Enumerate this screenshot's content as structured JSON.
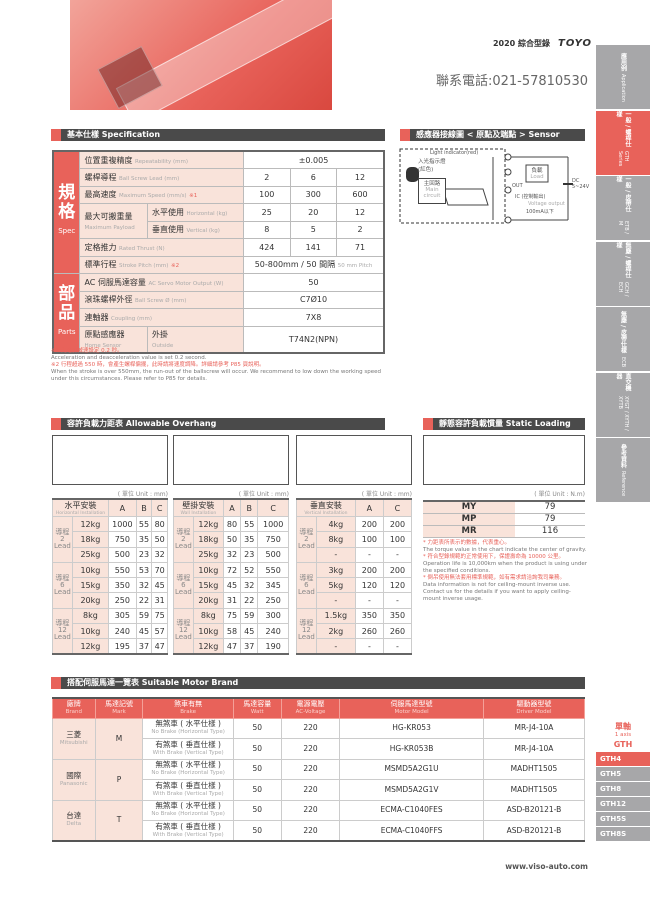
{
  "header": {
    "catalog": "2020 綜合型錄",
    "brand": "TOYO",
    "phone": "聯系電話:021-57810530"
  },
  "sidebar": [
    {
      "zh": "應用例",
      "en": "Application"
    },
    {
      "zh": "一般 / 螺桿仕樣",
      "en": "GTH Series",
      "active": true
    },
    {
      "zh": "一般 / 皮帶仕樣",
      "en": "ETB / M"
    },
    {
      "zh": "無塵 / 螺桿仕樣",
      "en": "GCH / ECH"
    },
    {
      "zh": "無塵 / 皮帶仕樣",
      "en": "ECB"
    },
    {
      "zh": "直交機器",
      "en": "XYGT / XYTH / XYTB"
    },
    {
      "zh": "參考資料",
      "en": "Reference"
    }
  ],
  "axis_nav": {
    "zh": "單軸",
    "en": "1 axis",
    "model": "GTH",
    "items": [
      "GTH4",
      "GTH5",
      "GTH8",
      "GTH12",
      "GTH5S",
      "GTH8S"
    ],
    "active": "GTH4"
  },
  "spec": {
    "title": "基本仕樣 Specification",
    "group_spec": {
      "zh": "規格",
      "en": "Spec"
    },
    "group_parts": {
      "zh": "部品",
      "en": "Parts"
    },
    "rows": {
      "repeat": {
        "zh": "位置重複精度",
        "en": "Repeatability (mm)",
        "value": "±0.005"
      },
      "lead": {
        "zh": "螺桿導程",
        "en": "Ball Screw Lead (mm)",
        "values": [
          "2",
          "6",
          "12"
        ]
      },
      "speed": {
        "zh": "最高速度",
        "en": "Maximum Speed (mm/s)",
        "mark": "※1",
        "values": [
          "100",
          "300",
          "600"
        ]
      },
      "payload": {
        "zh": "最大可搬重量",
        "en": "Maximum Payload",
        "h_zh": "水平使用",
        "h_en": "Horizontal (kg)",
        "h": [
          "25",
          "20",
          "12"
        ],
        "v_zh": "垂直使用",
        "v_en": "Vertical (kg)",
        "v": [
          "8",
          "5",
          "2"
        ]
      },
      "thrust": {
        "zh": "定格推力",
        "en": "Rated Thrust (N)",
        "values": [
          "424",
          "141",
          "71"
        ]
      },
      "stroke": {
        "zh": "標準行程",
        "en": "Stroke Pitch (mm)",
        "mark": "※2",
        "value": "50-800mm / 50 間隔",
        "value_en": "50 mm Pitch"
      },
      "motor": {
        "zh": "AC 伺服馬達容量",
        "en": "AC Servo Motor Output (W)",
        "value": "50"
      },
      "screw": {
        "zh": "滾珠螺桿外徑",
        "en": "Ball Screw Ø (mm)",
        "value": "C7Ø10"
      },
      "coupling": {
        "zh": "連軸器",
        "en": "Coupling (mm)",
        "value": "7X8"
      },
      "sensor": {
        "zh": "原點感應器",
        "en": "Home Sensor",
        "sub_zh": "外掛",
        "sub_en": "Outside",
        "value": "T74N2(NPN)"
      }
    },
    "notes": [
      "※1 馬達加減速設定 0.2 秒。",
      "Acceleration and deacceleration value is set 0.2 second.",
      "※2 行程超過 550 時，會產生螺桿偏擺，此時請將速度調降。詳細請參考 P85 頁說明。",
      "When the stroke is over 550mm, the run-out of the ballscrew will occur. We recommend to low down the working speed under this circumstances. Please refer to P85 for details."
    ]
  },
  "sensor_layout": {
    "title": "感應器接線圖 < 原點及端點 > Sensor Layout",
    "light_indicator": "Light indicator(red)",
    "lamp": "入光指示燈(紅色)",
    "main_zh": "主回路",
    "main_en": "Main circuit",
    "load_zh": "負載",
    "load_en": "Load",
    "out": "OUT",
    "ic": "IC (控制輸出)",
    "vout": "Voltage output",
    "current": "100mA以下",
    "dc": "DC 5~24V"
  },
  "overhang": {
    "title": "容許負載力距表 Allowable Overhang",
    "unit": "( 單位 Unit : mm)",
    "lead_label": "導程",
    "lead_en": "Lead",
    "tables": [
      {
        "zh": "水平安裝",
        "en": "Horizontal Installation",
        "cols": [
          "A",
          "B",
          "C"
        ],
        "groups": [
          {
            "lead": "2",
            "rows": [
              [
                "12kg",
                "1000",
                "55",
                "80"
              ],
              [
                "18kg",
                "750",
                "35",
                "50"
              ],
              [
                "25kg",
                "500",
                "23",
                "32"
              ]
            ]
          },
          {
            "lead": "6",
            "rows": [
              [
                "10kg",
                "550",
                "53",
                "70"
              ],
              [
                "15kg",
                "350",
                "32",
                "45"
              ],
              [
                "20kg",
                "250",
                "22",
                "31"
              ]
            ]
          },
          {
            "lead": "12",
            "rows": [
              [
                "8kg",
                "305",
                "59",
                "75"
              ],
              [
                "10kg",
                "240",
                "45",
                "57"
              ],
              [
                "12kg",
                "195",
                "37",
                "47"
              ]
            ]
          }
        ]
      },
      {
        "zh": "壁掛安裝",
        "en": "Wall Installation",
        "cols": [
          "A",
          "B",
          "C"
        ],
        "groups": [
          {
            "lead": "2",
            "rows": [
              [
                "12kg",
                "80",
                "55",
                "1000"
              ],
              [
                "18kg",
                "50",
                "35",
                "750"
              ],
              [
                "25kg",
                "32",
                "23",
                "500"
              ]
            ]
          },
          {
            "lead": "6",
            "rows": [
              [
                "10kg",
                "72",
                "52",
                "550"
              ],
              [
                "15kg",
                "45",
                "32",
                "345"
              ],
              [
                "20kg",
                "31",
                "22",
                "250"
              ]
            ]
          },
          {
            "lead": "12",
            "rows": [
              [
                "8kg",
                "75",
                "59",
                "300"
              ],
              [
                "10kg",
                "58",
                "45",
                "240"
              ],
              [
                "12kg",
                "47",
                "37",
                "190"
              ]
            ]
          }
        ]
      },
      {
        "zh": "垂直安裝",
        "en": "Vertical Installation",
        "cols": [
          "A",
          "C"
        ],
        "groups": [
          {
            "lead": "2",
            "rows": [
              [
                "4kg",
                "200",
                "200"
              ],
              [
                "8kg",
                "100",
                "100"
              ],
              [
                "-",
                "-",
                "-"
              ]
            ]
          },
          {
            "lead": "6",
            "rows": [
              [
                "3kg",
                "200",
                "200"
              ],
              [
                "5kg",
                "120",
                "120"
              ],
              [
                "-",
                "-",
                "-"
              ]
            ]
          },
          {
            "lead": "12",
            "rows": [
              [
                "1.5kg",
                "350",
                "350"
              ],
              [
                "2kg",
                "260",
                "260"
              ],
              [
                "-",
                "-",
                "-"
              ]
            ]
          }
        ]
      }
    ]
  },
  "moment": {
    "title": "靜態容許負載慣量 Static Loading Moment",
    "unit": "( 單位 Unit : N.m)",
    "rows": [
      [
        "MY",
        "79"
      ],
      [
        "MP",
        "79"
      ],
      [
        "MR",
        "116"
      ]
    ],
    "notes": [
      {
        "t": "* 力距表所表示的數據，代表重心。",
        "red": true
      },
      {
        "t": "The torque value in the chart indicate the center of gravity."
      },
      {
        "t": "* 符合型錄規範的正常使用下，保證壽命為 10000 公里。",
        "red": true
      },
      {
        "t": "Operation life is 10,000km when the product is using under the specified conditions."
      },
      {
        "t": "* 倒吊使用無法套用標準規範，如有需求請洽詢我司業務。",
        "red": true
      },
      {
        "t": "Data information is not for ceiling-mount inverse use."
      },
      {
        "t": "Contact us for the details if you want to apply ceiling-mount inverse usage."
      }
    ]
  },
  "motors": {
    "title": "搭配伺服馬達一覽表 Suitable Motor Brand",
    "headers": [
      [
        "廠牌",
        "Brand"
      ],
      [
        "馬達記號",
        "Mark"
      ],
      [
        "煞車有無",
        "Brake"
      ],
      [
        "馬達容量",
        "Watt"
      ],
      [
        "電源電壓",
        "AC-Voltage"
      ],
      [
        "伺服馬達型號",
        "Motor Model"
      ],
      [
        "驅動器型號",
        "Driver Model"
      ]
    ],
    "brands": [
      {
        "zh": "三菱",
        "en": "Mitsubishi",
        "mark": "M",
        "rows": [
          [
            "無煞車 ( 水平仕樣 )",
            "No Brake (Horizontal Type)",
            "50",
            "220",
            "HG-KR053",
            "MR-J4-10A"
          ],
          [
            "有煞車 ( 垂直仕樣 )",
            "With Brake (Vertical Type)",
            "50",
            "220",
            "HG-KR053B",
            "MR-J4-10A"
          ]
        ]
      },
      {
        "zh": "國際",
        "en": "Panasonic",
        "mark": "P",
        "rows": [
          [
            "無煞車 ( 水平仕樣 )",
            "No Brake (Horizontal Type)",
            "50",
            "220",
            "MSMD5A2G1U",
            "MADHT1505"
          ],
          [
            "有煞車 ( 垂直仕樣 )",
            "With Brake (Vertical Type)",
            "50",
            "220",
            "MSMD5A2G1V",
            "MADHT1505"
          ]
        ]
      },
      {
        "zh": "台達",
        "en": "Delta",
        "mark": "T",
        "rows": [
          [
            "無煞車 ( 水平仕樣 )",
            "No Brake (Horizontal Type)",
            "50",
            "220",
            "ECMA-C1040FES",
            "ASD-B20121-B"
          ],
          [
            "有煞車 ( 垂直仕樣 )",
            "With Brake (Vertical Type)",
            "50",
            "220",
            "ECMA-C1040FFS",
            "ASD-B20121-B"
          ]
        ]
      }
    ]
  },
  "footer": {
    "url": "www.viso-auto.com"
  },
  "colors": {
    "accent": "#e8625a",
    "light": "#f9e3da",
    "dark": "#4a4a4a",
    "sidebar": "#a7a7a9"
  }
}
